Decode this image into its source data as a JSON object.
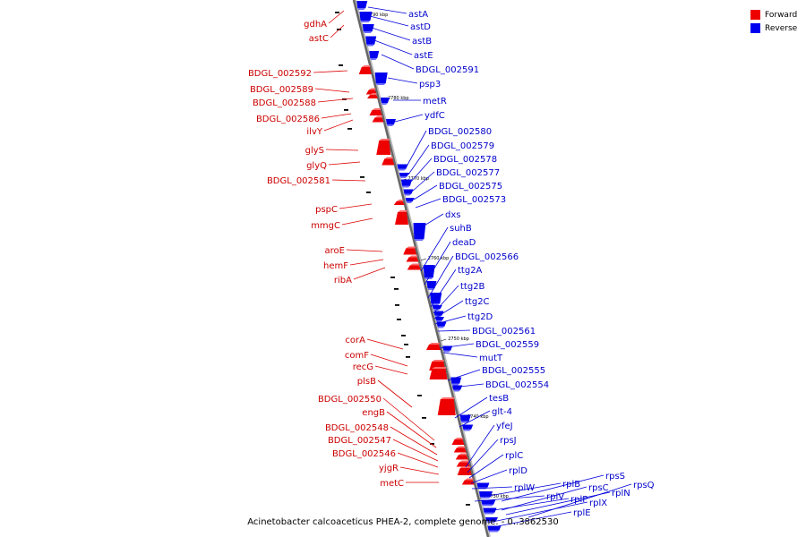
{
  "legend": {
    "forward_label": "Forward",
    "reverse_label": "Reverse",
    "forward_color": "#ee0000",
    "reverse_color": "#0000ee"
  },
  "caption": "Acinetobacter calcoaceticus PHEA-2, complete genome. - 0..3862530",
  "ticks": [
    "2790 kbp",
    "2780 kbp",
    "2770 kbp",
    "2760 kbp",
    "2750 kbp",
    "2740 kbp",
    "2730 kbp"
  ],
  "forward_genes": [
    "gdhA",
    "astC",
    "BDGL_002592",
    "BDGL_002589",
    "BDGL_002588",
    "BDGL_002586",
    "ilvY",
    "glyS",
    "glyQ",
    "BDGL_002581",
    "pspC",
    "mmgC",
    "aroE",
    "hemF",
    "ribA",
    "corA",
    "comF",
    "recG",
    "plsB",
    "BDGL_002550",
    "engB",
    "BDGL_002548",
    "BDGL_002547",
    "BDGL_002546",
    "yjgR",
    "metC"
  ],
  "reverse_genes": [
    "astA",
    "astD",
    "astB",
    "astE",
    "BDGL_002591",
    "psp3",
    "metR",
    "ydfC",
    "BDGL_002580",
    "BDGL_002579",
    "BDGL_002578",
    "BDGL_002577",
    "BDGL_002575",
    "BDGL_002573",
    "dxs",
    "suhB",
    "deaD",
    "BDGL_002566",
    "ttg2A",
    "ttg2B",
    "ttg2C",
    "ttg2D",
    "BDGL_002561",
    "BDGL_002559",
    "mutT",
    "BDGL_002555",
    "BDGL_002554",
    "tesB",
    "glt-4",
    "yfeJ",
    "rpsJ",
    "rplC",
    "rplD",
    "rplW",
    "rplB",
    "rpsS",
    "rplV",
    "rpsC",
    "rplP",
    "rplN",
    "rpsQ",
    "rplX",
    "rplE"
  ]
}
